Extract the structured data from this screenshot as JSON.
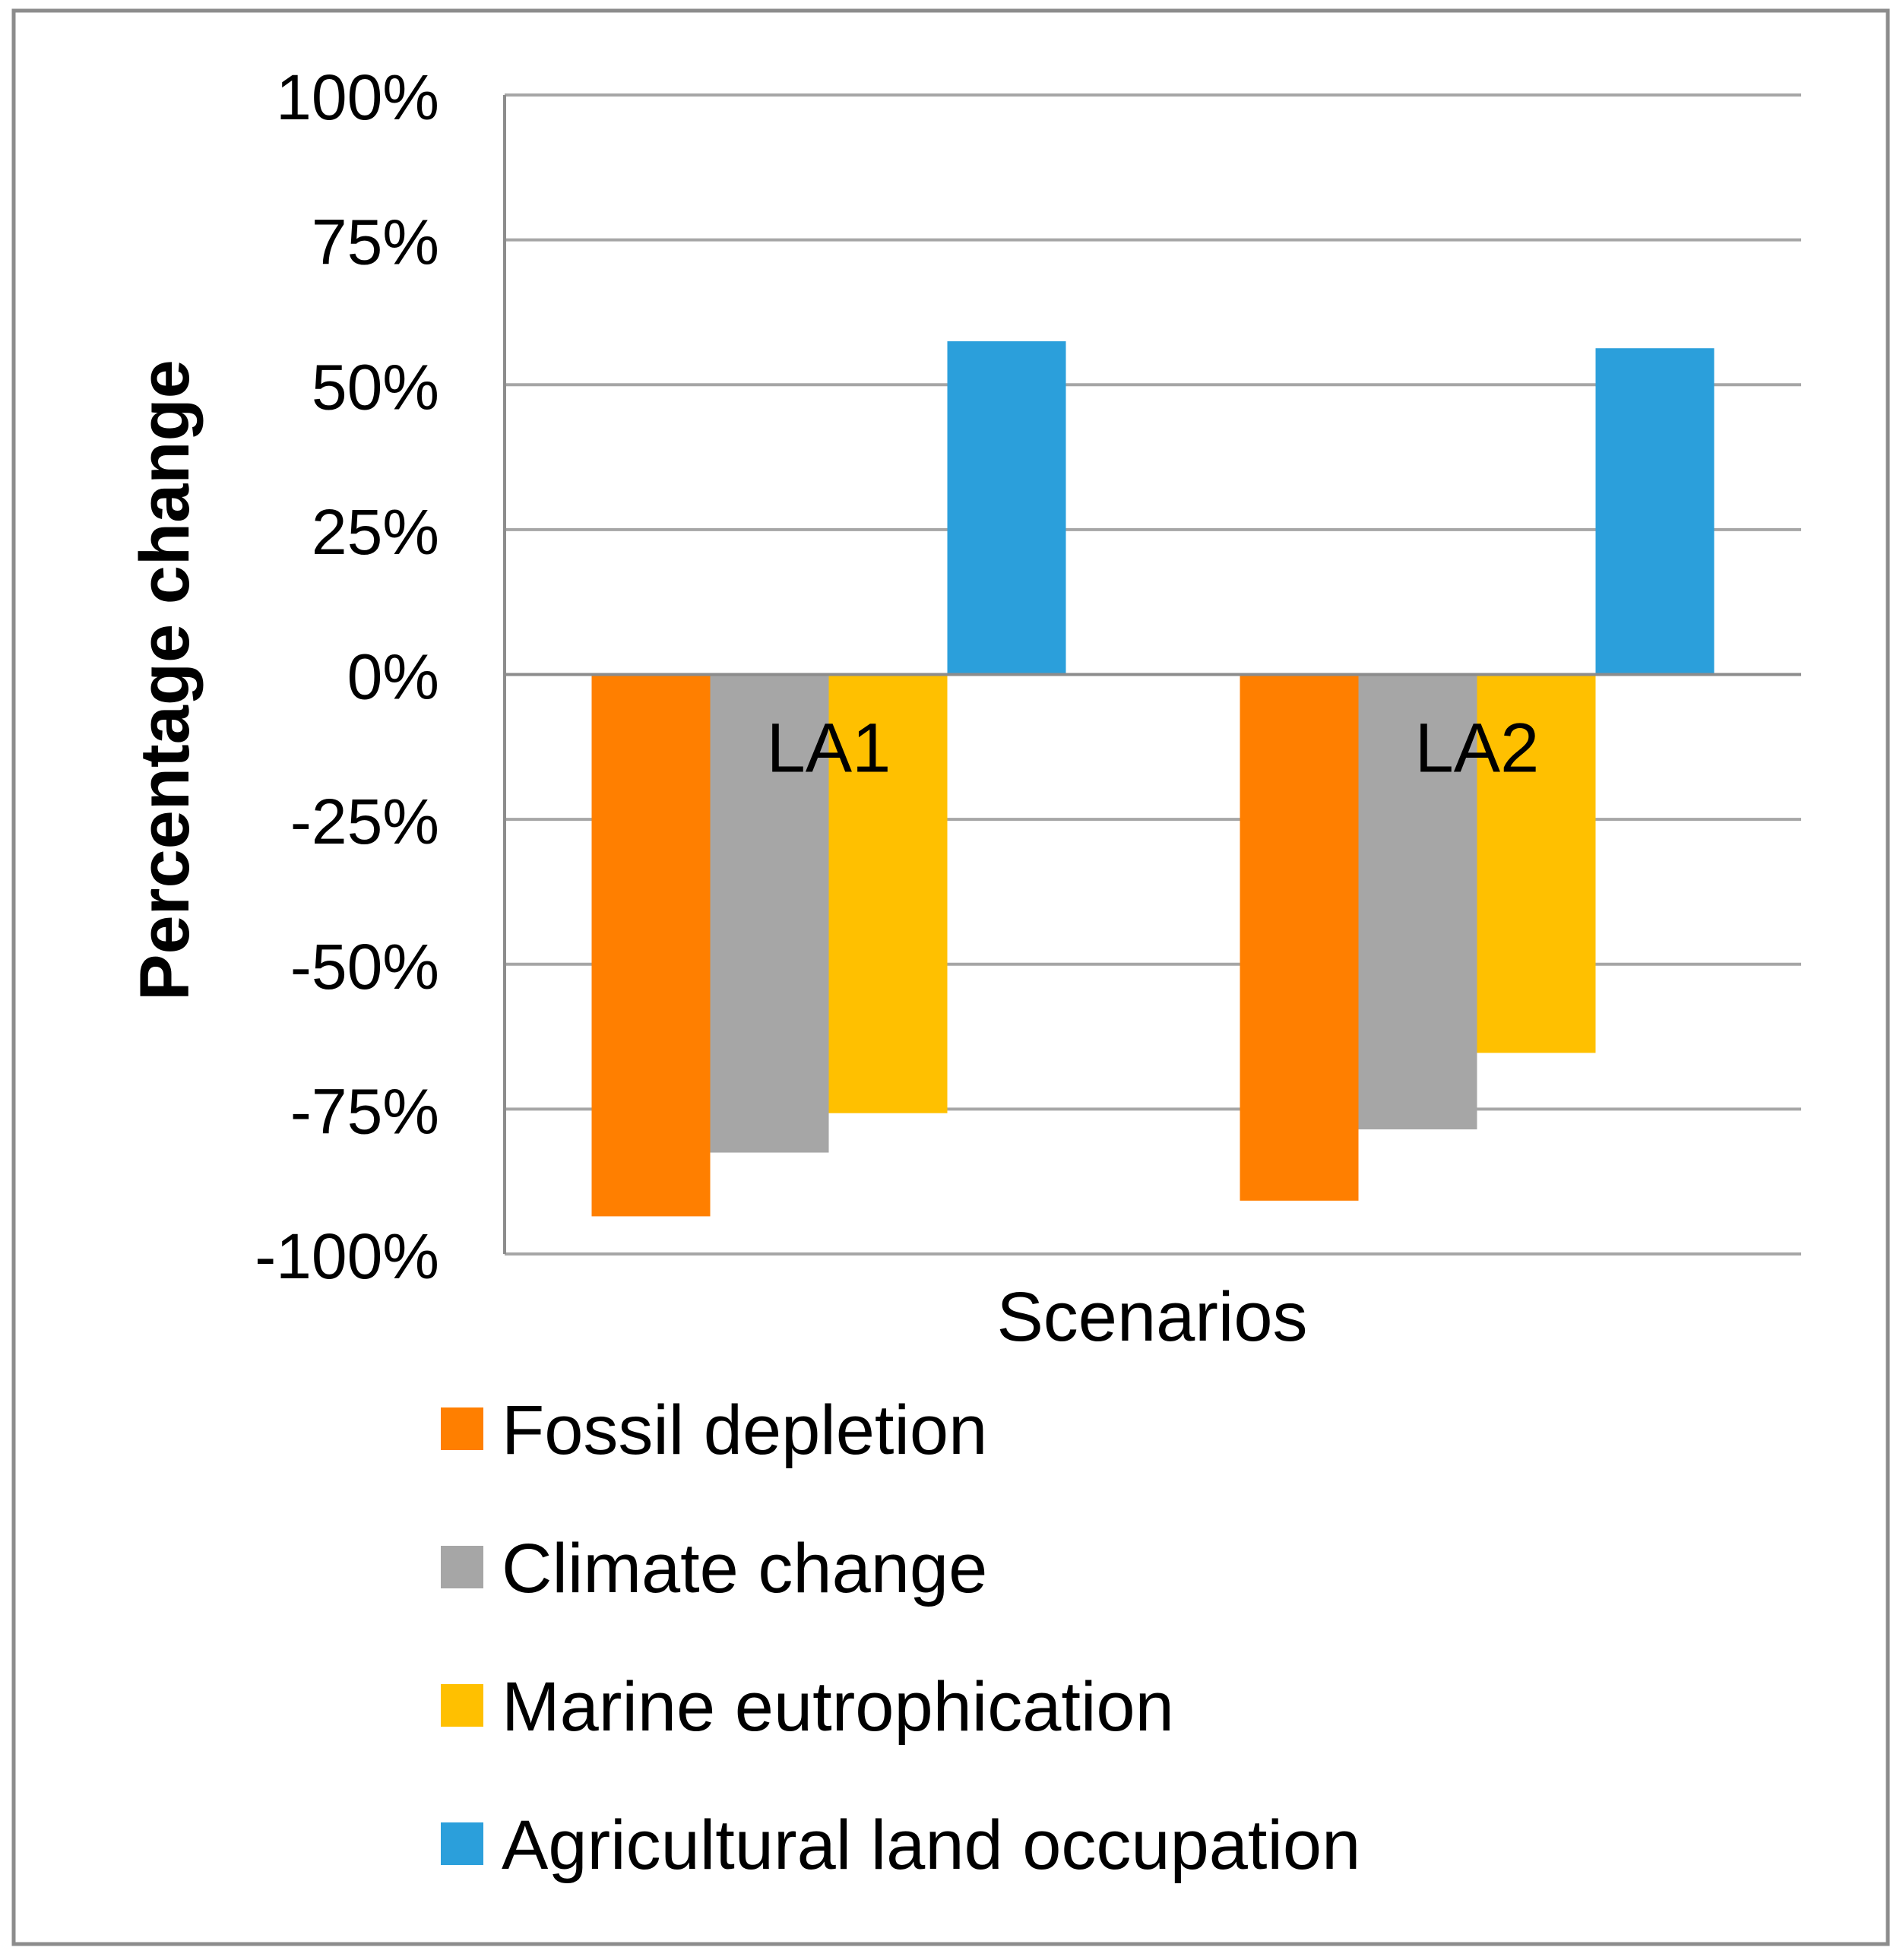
{
  "chart_data": {
    "type": "bar",
    "title": "",
    "xlabel": "Scenarios",
    "ylabel": "Percentage change",
    "categories": [
      "LA1",
      "LA2"
    ],
    "ylim": [
      -100,
      100
    ],
    "yticks": [
      100,
      75,
      50,
      25,
      0,
      -25,
      -50,
      -75,
      -100
    ],
    "ytick_labels": [
      "100%",
      "75%",
      "50%",
      "25%",
      "0%",
      "-25%",
      "-50%",
      "-75%",
      "-100%"
    ],
    "grid": true,
    "legend_position": "bottom",
    "series": [
      {
        "name": "Fossil depletion",
        "color": "#FF7F00",
        "values": [
          -93.5,
          -90.8
        ]
      },
      {
        "name": "Climate change",
        "color": "#A6A6A6",
        "values": [
          -82.5,
          -78.5
        ]
      },
      {
        "name": "Marine eutrophication",
        "color": "#FFC000",
        "values": [
          -75.7,
          -65.3
        ]
      },
      {
        "name": "Agricultural land occupation",
        "color": "#2B9FDB",
        "values": [
          57.5,
          56.3
        ]
      }
    ]
  },
  "colors": {
    "grid": "#A6A6A6",
    "frame": "#8C8C8C",
    "axis": "#8C8C8C"
  }
}
